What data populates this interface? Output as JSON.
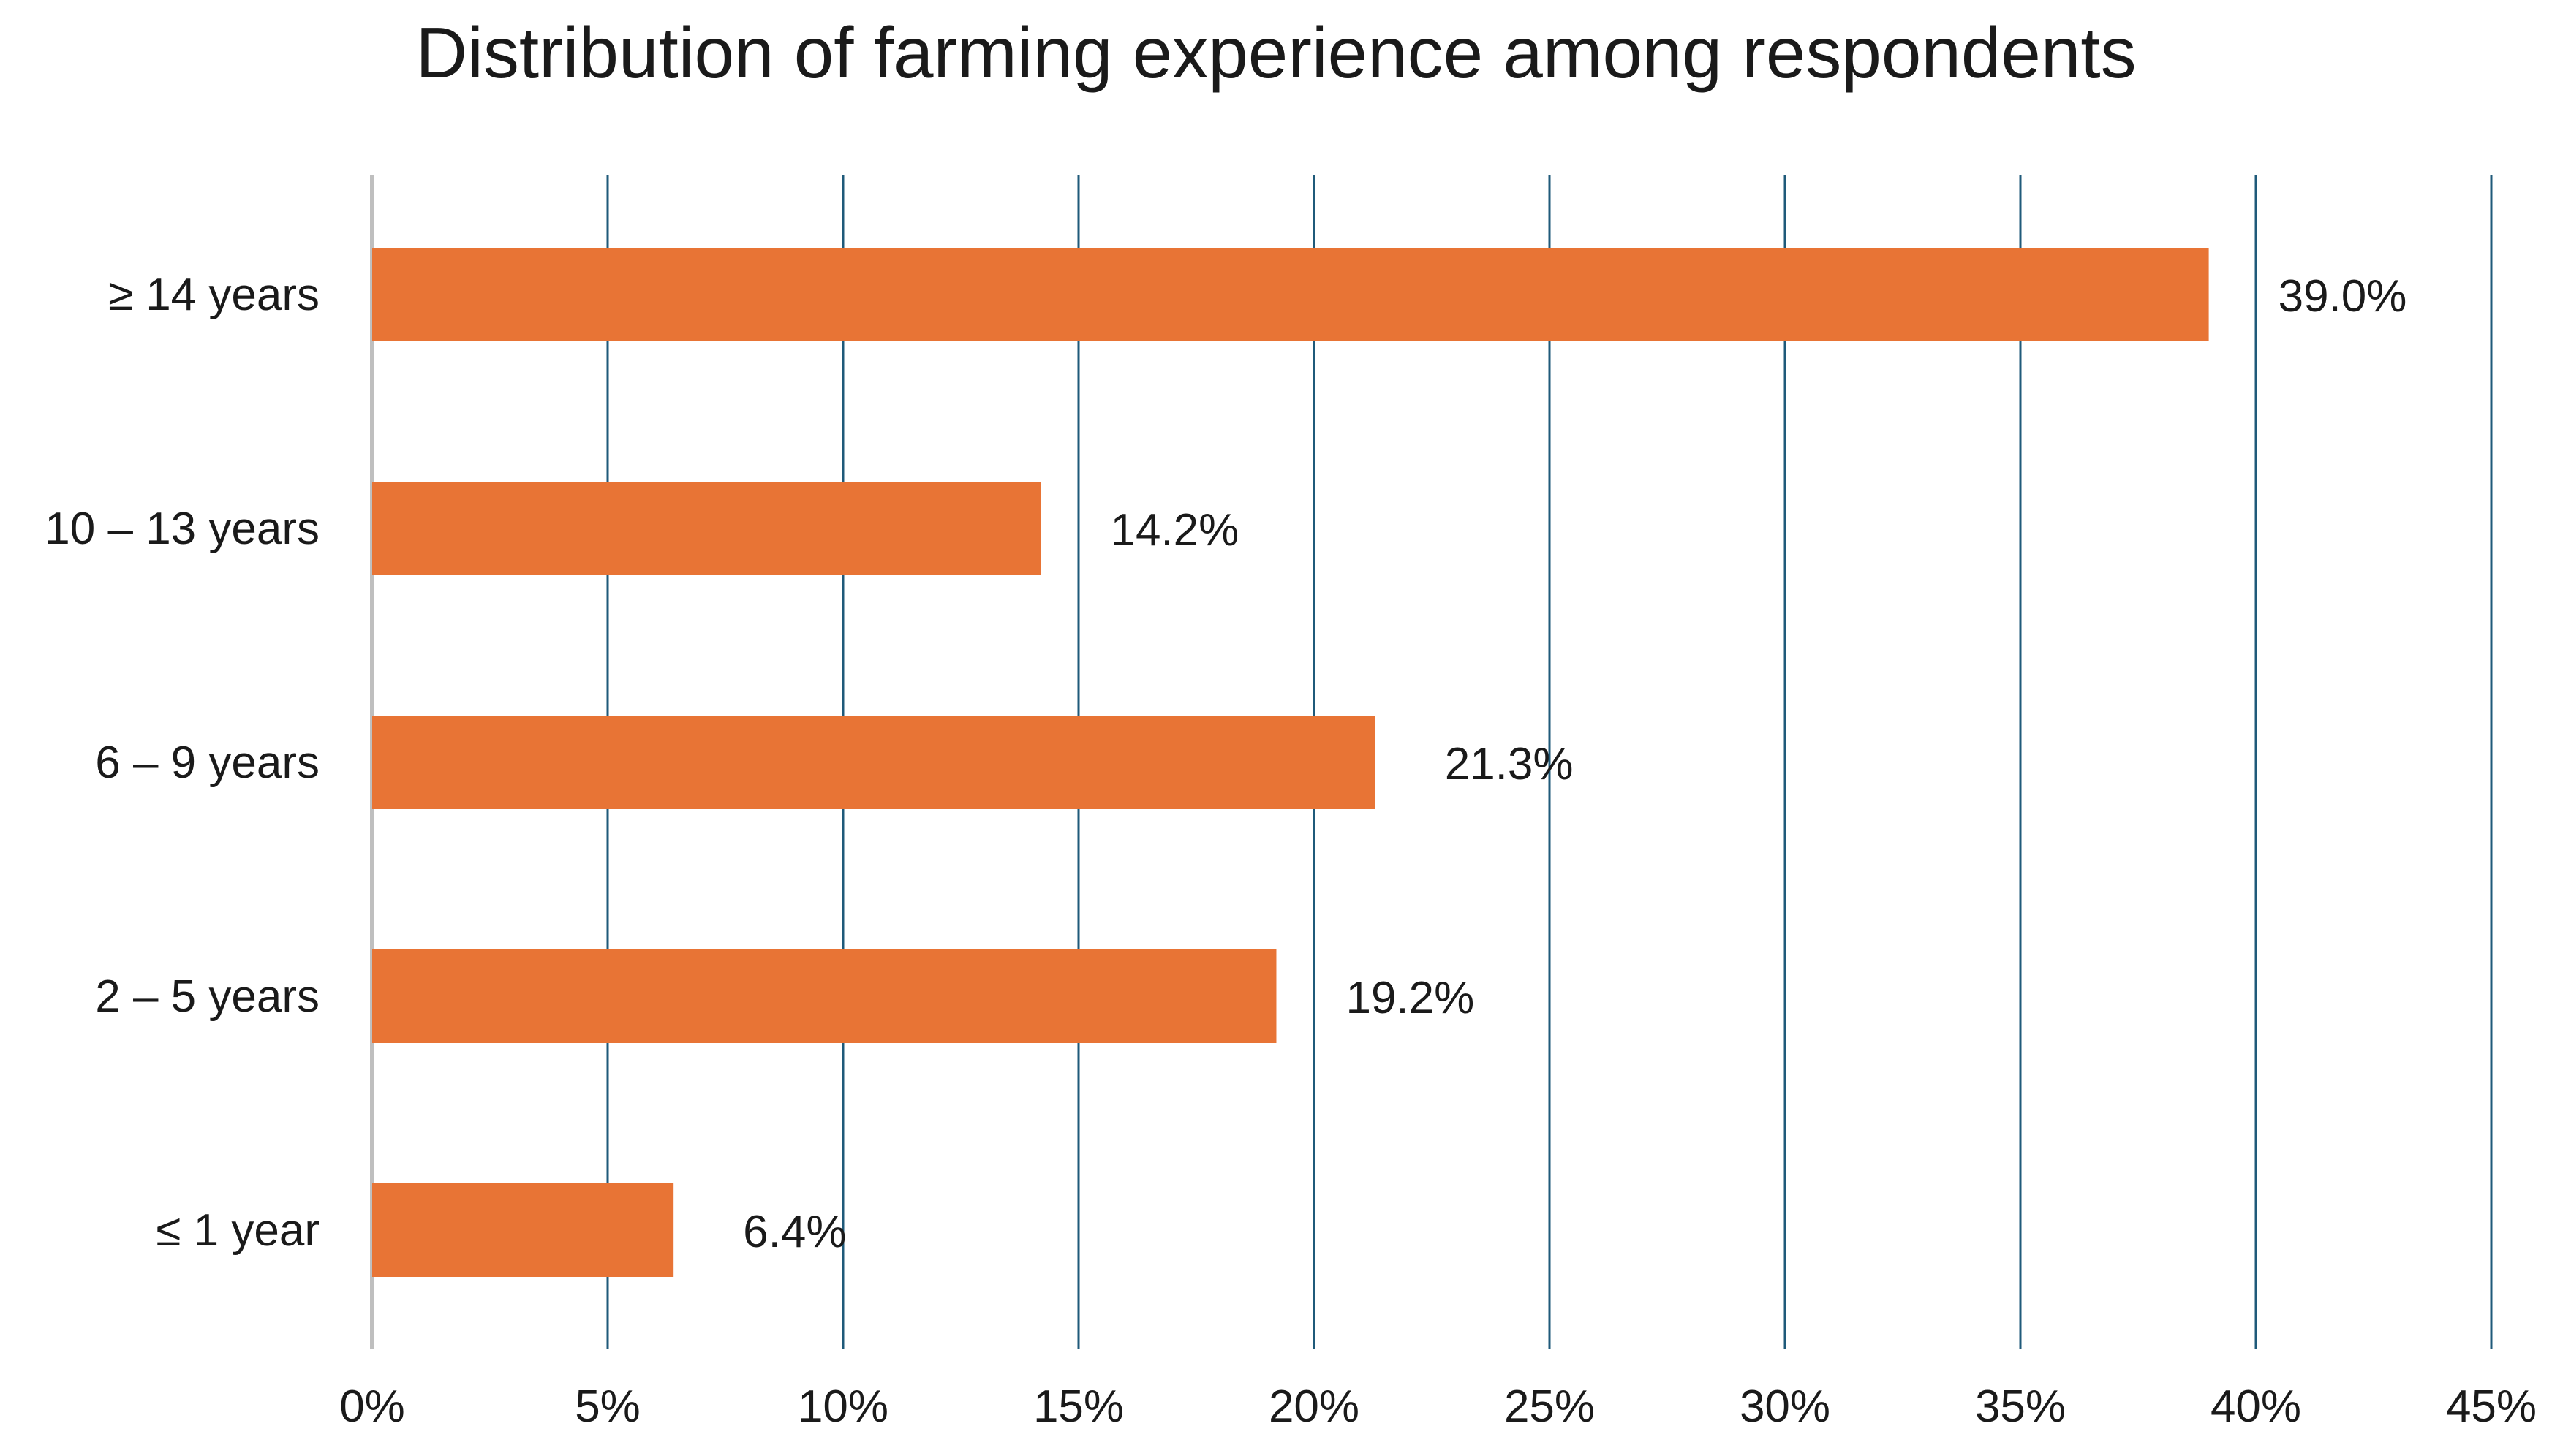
{
  "chart_data": {
    "type": "bar",
    "orientation": "horizontal",
    "title": "Distribution of farming experience among respondents",
    "categories": [
      "≥ 14 years",
      "10 – 13 years",
      "6 – 9 years",
      "2 – 5 years",
      "≤ 1 year"
    ],
    "values": [
      39.0,
      14.2,
      21.3,
      19.2,
      6.4
    ],
    "data_labels": [
      "39.0%",
      "14.2%",
      "21.3%",
      "19.2%",
      "6.4%"
    ],
    "xlim": [
      0,
      45
    ],
    "x_ticks": [
      0,
      5,
      10,
      15,
      20,
      25,
      30,
      35,
      40,
      45
    ],
    "x_tick_labels": [
      "0%",
      "5%",
      "10%",
      "15%",
      "20%",
      "25%",
      "30%",
      "35%",
      "40%",
      "45%"
    ],
    "xlabel": "",
    "ylabel": "",
    "grid": "vertical",
    "legend": "none",
    "colors": {
      "bar": "#E87435",
      "gridline": "#1F5A7A",
      "axis": "#BFBFBF",
      "text": "#1a1a1a"
    }
  }
}
